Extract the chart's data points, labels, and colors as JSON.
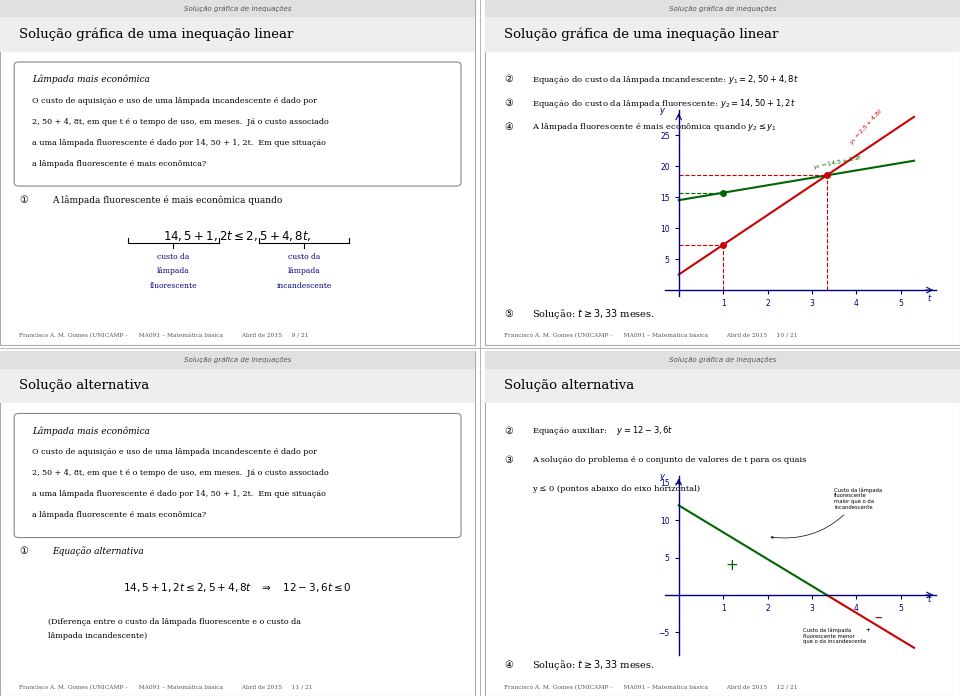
{
  "bg_color": "#ffffff",
  "header_text": "Solução gráfica de inequações",
  "blue_color": "#000080",
  "red_color": "#cc0000",
  "green_color": "#006600",
  "slides": [
    {
      "title": "Solução gráfica de uma inequação linear",
      "page": "9 / 21"
    },
    {
      "title": "Solução gráfica de uma inequação linear",
      "page": "10 / 21"
    },
    {
      "title": "Solução alternativa",
      "page": "11 / 21"
    },
    {
      "title": "Solução alternativa",
      "page": "12 / 21"
    }
  ],
  "footer_base": "Francisco A. M. Gomes (UNICAMP -      MA091 – Matemática básica          Abril de 2015",
  "problem_text_line1": "O custo de aquisição e uso de uma lâmpada incandescente é dado por",
  "problem_text_line2": "2, 50 + 4, 8t, em que t é o tempo de uso, em meses.  Já o custo associado",
  "problem_text_line3": "a uma lâmpada fluorescente é dado por 14, 50 + 1, 2t.  Em que situação",
  "problem_text_line4": "a lâmpada fluorescente é mais econômica?"
}
